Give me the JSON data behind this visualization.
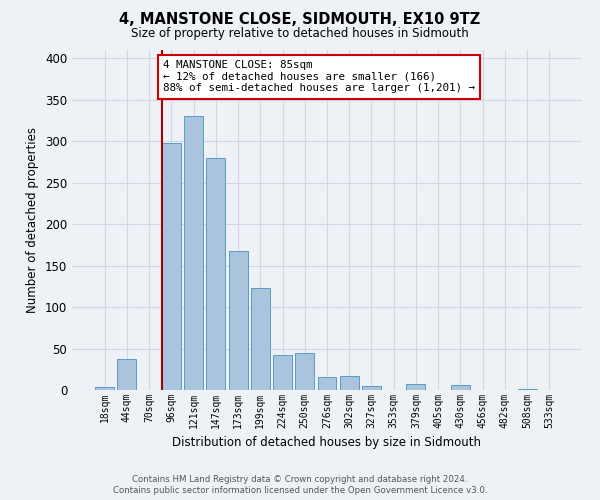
{
  "title": "4, MANSTONE CLOSE, SIDMOUTH, EX10 9TZ",
  "subtitle": "Size of property relative to detached houses in Sidmouth",
  "xlabel": "Distribution of detached houses by size in Sidmouth",
  "ylabel": "Number of detached properties",
  "footnote1": "Contains HM Land Registry data © Crown copyright and database right 2024.",
  "footnote2": "Contains public sector information licensed under the Open Government Licence v3.0.",
  "bar_labels": [
    "18sqm",
    "44sqm",
    "70sqm",
    "96sqm",
    "121sqm",
    "147sqm",
    "173sqm",
    "199sqm",
    "224sqm",
    "250sqm",
    "276sqm",
    "302sqm",
    "327sqm",
    "353sqm",
    "379sqm",
    "405sqm",
    "430sqm",
    "456sqm",
    "482sqm",
    "508sqm",
    "533sqm"
  ],
  "bar_values": [
    4,
    37,
    0,
    298,
    330,
    280,
    168,
    123,
    42,
    45,
    16,
    17,
    5,
    0,
    7,
    0,
    6,
    0,
    0,
    1,
    0
  ],
  "bar_color": "#aac4de",
  "bar_edge_color": "#5a9ac8",
  "grid_color": "#d0d8e4",
  "bg_color": "#eef2f7",
  "vline_color": "#aa0000",
  "annotation_text": "4 MANSTONE CLOSE: 85sqm\n← 12% of detached houses are smaller (166)\n88% of semi-detached houses are larger (1,201) →",
  "annotation_box_color": "#ffffff",
  "annotation_box_edge": "#cc0000",
  "ylim": [
    0,
    410
  ],
  "yticks": [
    0,
    50,
    100,
    150,
    200,
    250,
    300,
    350,
    400
  ]
}
